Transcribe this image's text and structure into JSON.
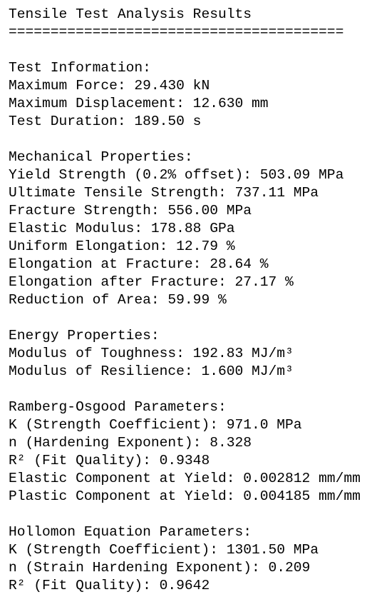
{
  "title": "Tensile Test Analysis Results",
  "separator": "========================================",
  "sections": [
    {
      "heading": "Test Information:",
      "lines": [
        "Maximum Force: 29.430 kN",
        "Maximum Displacement: 12.630 mm",
        "Test Duration: 189.50 s"
      ]
    },
    {
      "heading": "Mechanical Properties:",
      "lines": [
        "Yield Strength (0.2% offset): 503.09 MPa",
        "Ultimate Tensile Strength: 737.11 MPa",
        "Fracture Strength: 556.00 MPa",
        "Elastic Modulus: 178.88 GPa",
        "Uniform Elongation: 12.79 %",
        "Elongation at Fracture: 28.64 %",
        "Elongation after Fracture: 27.17 %",
        "Reduction of Area: 59.99 %"
      ]
    },
    {
      "heading": "Energy Properties:",
      "lines": [
        "Modulus of Toughness: 192.83 MJ/m³",
        "Modulus of Resilience: 1.600 MJ/m³"
      ]
    },
    {
      "heading": "Ramberg-Osgood Parameters:",
      "lines": [
        "K (Strength Coefficient): 971.0 MPa",
        "n (Hardening Exponent): 8.328",
        "R² (Fit Quality): 0.9348",
        "Elastic Component at Yield: 0.002812 mm/mm",
        "Plastic Component at Yield: 0.004185 mm/mm"
      ]
    },
    {
      "heading": "Hollomon Equation Parameters:",
      "lines": [
        "K (Strength Coefficient): 1301.50 MPa",
        "n (Strain Hardening Exponent): 0.209",
        "R² (Fit Quality): 0.9642"
      ]
    }
  ]
}
